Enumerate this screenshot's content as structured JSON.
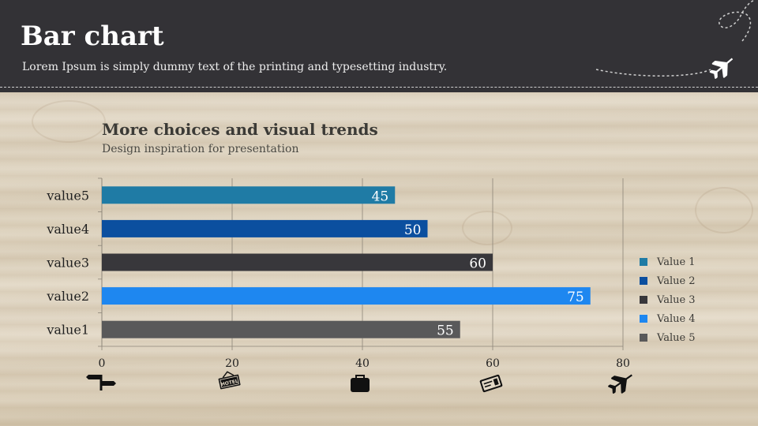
{
  "header": {
    "title": "Bar chart",
    "subtitle": "Lorem Ipsum is simply dummy text of the printing and typesetting industry."
  },
  "icons": {
    "header_decoration": "airplane-icon",
    "axis_icons": [
      "signpost-icon",
      "hotel-sign-icon",
      "suitcase-icon",
      "ticket-icon",
      "airplane-icon"
    ]
  },
  "colors": {
    "header_bg": "#333236",
    "axis_text": "#1f1f1f"
  },
  "chart_data": {
    "type": "bar",
    "orientation": "horizontal",
    "title": "More choices and visual trends",
    "subtitle": "Design inspiration for presentation",
    "categories": [
      "value5",
      "value4",
      "value3",
      "value2",
      "value1"
    ],
    "values": [
      45,
      50,
      60,
      75,
      55
    ],
    "bar_colors": [
      "#1f7ba5",
      "#0b4f9f",
      "#38373b",
      "#1e87f0",
      "#59595a"
    ],
    "xlim": [
      0,
      80
    ],
    "xticks": [
      0,
      20,
      40,
      60,
      80
    ],
    "grid": true,
    "data_labels": true,
    "legend": {
      "position": "right",
      "entries": [
        "Value 1",
        "Value 2",
        "Value 3",
        "Value 4",
        "Value 5"
      ],
      "colors": [
        "#1f7ba5",
        "#0b4f9f",
        "#38373b",
        "#1e87f0",
        "#59595a"
      ]
    }
  }
}
